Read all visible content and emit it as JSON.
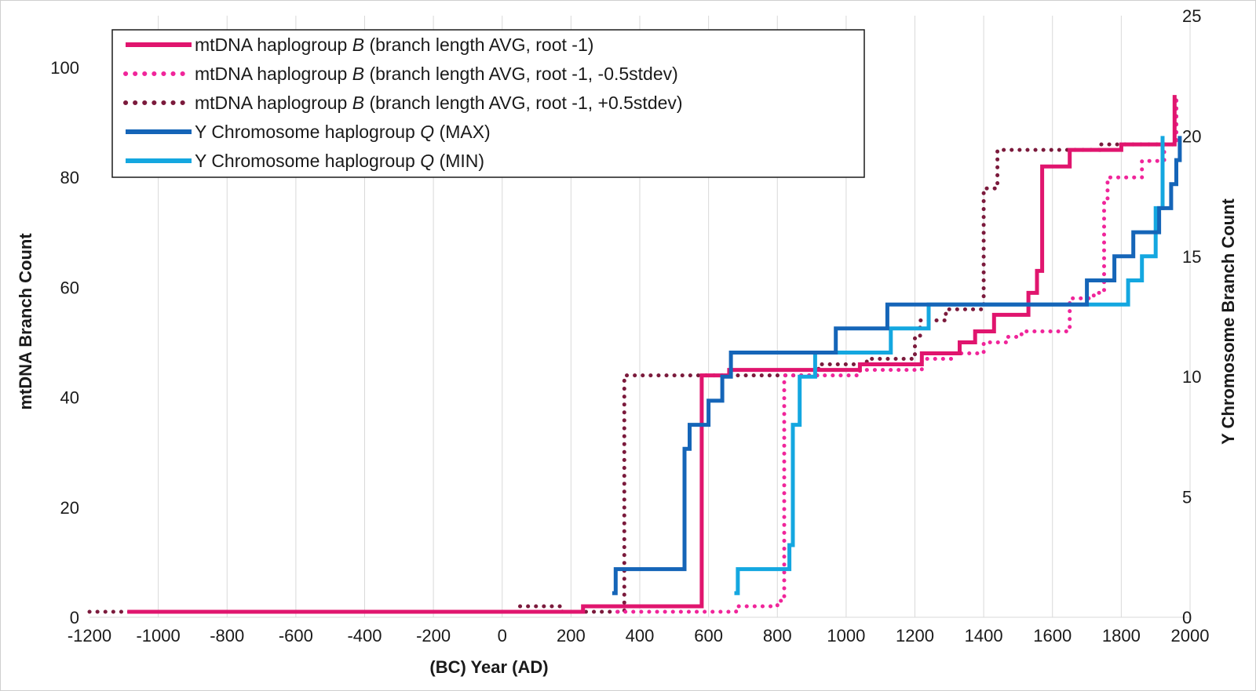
{
  "chart_data": {
    "type": "line",
    "xlabel": "(BC) Year (AD)",
    "ylabel_left": "mtDNA Branch Count",
    "ylabel_right": "Y Chromosome  Branch Count",
    "xlim": [
      -1200,
      2000
    ],
    "ylim_left": [
      0,
      110
    ],
    "ylim_right": [
      0,
      25
    ],
    "x_ticks": [
      -1200,
      -1000,
      -800,
      -600,
      -400,
      -200,
      0,
      200,
      400,
      600,
      800,
      1000,
      1200,
      1400,
      1600,
      1800,
      2000
    ],
    "y_left_ticks": [
      0,
      20,
      40,
      60,
      80,
      100
    ],
    "y_right_ticks": [
      0,
      5,
      10,
      15,
      20,
      25
    ],
    "grid": "vertical",
    "legend_position": "top-left",
    "series": [
      {
        "name": "mtDNA haplogroup B (branch length AVG, root -1)",
        "name_prefix": "mtDNA haplogroup ",
        "name_italic": "B",
        "name_suffix": " (branch length AVG, root -1)",
        "axis": "left",
        "color": "#e0156e",
        "style": "solid",
        "points": [
          [
            -1090,
            1
          ],
          [
            235,
            1
          ],
          [
            235,
            2
          ],
          [
            580,
            2
          ],
          [
            580,
            44
          ],
          [
            660,
            44
          ],
          [
            660,
            45
          ],
          [
            1040,
            45
          ],
          [
            1040,
            46
          ],
          [
            1220,
            46
          ],
          [
            1220,
            48
          ],
          [
            1330,
            48
          ],
          [
            1330,
            50
          ],
          [
            1375,
            50
          ],
          [
            1375,
            52
          ],
          [
            1430,
            52
          ],
          [
            1430,
            55
          ],
          [
            1530,
            55
          ],
          [
            1530,
            59
          ],
          [
            1555,
            59
          ],
          [
            1555,
            63
          ],
          [
            1570,
            63
          ],
          [
            1570,
            82
          ],
          [
            1650,
            82
          ],
          [
            1650,
            85
          ],
          [
            1800,
            85
          ],
          [
            1800,
            86
          ],
          [
            1955,
            86
          ],
          [
            1955,
            95
          ]
        ]
      },
      {
        "name": "mtDNA haplogroup B (branch length AVG, root -1, -0.5stdev)",
        "name_prefix": "mtDNA haplogroup ",
        "name_italic": "B",
        "name_suffix": " (branch length AVG, root -1, -0.5stdev)",
        "axis": "left",
        "color": "#f0259a",
        "style": "dotted",
        "points": [
          [
            335,
            1
          ],
          [
            435,
            1
          ],
          [
            680,
            1
          ],
          [
            680,
            2
          ],
          [
            800,
            2
          ],
          [
            800,
            3
          ],
          [
            820,
            3
          ],
          [
            820,
            44
          ],
          [
            1040,
            44
          ],
          [
            1040,
            45
          ],
          [
            1220,
            45
          ],
          [
            1220,
            47
          ],
          [
            1310,
            47
          ],
          [
            1310,
            48
          ],
          [
            1400,
            48
          ],
          [
            1400,
            50
          ],
          [
            1470,
            50
          ],
          [
            1470,
            51
          ],
          [
            1510,
            51
          ],
          [
            1510,
            52
          ],
          [
            1650,
            52
          ],
          [
            1650,
            58
          ],
          [
            1720,
            58
          ],
          [
            1720,
            59
          ],
          [
            1750,
            59
          ],
          [
            1750,
            76
          ],
          [
            1760,
            76
          ],
          [
            1760,
            80
          ],
          [
            1860,
            80
          ],
          [
            1860,
            83
          ],
          [
            1925,
            83
          ],
          [
            1925,
            86
          ],
          [
            1960,
            86
          ],
          [
            1960,
            95
          ]
        ]
      },
      {
        "name": "mtDNA haplogroup B (branch length AVG, root -1, +0.5stdev)",
        "name_prefix": "mtDNA haplogroup ",
        "name_italic": "B",
        "name_suffix": " (branch length AVG, root -1, +0.5stdev)",
        "axis": "left",
        "color": "#7b1a3c",
        "style": "dotted",
        "points": [
          [
            -1200,
            1
          ],
          [
            0,
            1
          ],
          [
            50,
            1
          ],
          [
            50,
            2
          ],
          [
            175,
            2
          ],
          [
            175,
            1
          ],
          [
            355,
            1
          ],
          [
            355,
            44
          ],
          [
            920,
            44
          ],
          [
            920,
            46
          ],
          [
            1060,
            46
          ],
          [
            1060,
            47
          ],
          [
            1200,
            47
          ],
          [
            1200,
            51
          ],
          [
            1215,
            51
          ],
          [
            1215,
            54
          ],
          [
            1290,
            54
          ],
          [
            1290,
            56
          ],
          [
            1400,
            56
          ],
          [
            1400,
            78
          ],
          [
            1440,
            78
          ],
          [
            1440,
            85
          ],
          [
            1500,
            85
          ],
          [
            1500,
            85
          ],
          [
            1735,
            85
          ],
          [
            1735,
            86
          ],
          [
            1960,
            86
          ],
          [
            1960,
            95
          ]
        ]
      },
      {
        "name": "Y Chromosome haplogroup Q (MAX)",
        "name_prefix": "Y Chromosome haplogroup ",
        "name_italic": "Q",
        "name_suffix": " (MAX)",
        "axis": "right",
        "color": "#1565b8",
        "style": "solid",
        "points": [
          [
            320,
            1
          ],
          [
            330,
            1
          ],
          [
            330,
            2
          ],
          [
            530,
            2
          ],
          [
            530,
            7
          ],
          [
            545,
            7
          ],
          [
            545,
            8
          ],
          [
            600,
            8
          ],
          [
            600,
            9
          ],
          [
            640,
            9
          ],
          [
            640,
            10
          ],
          [
            665,
            10
          ],
          [
            665,
            11
          ],
          [
            970,
            11
          ],
          [
            970,
            12
          ],
          [
            1120,
            12
          ],
          [
            1120,
            13
          ],
          [
            1700,
            13
          ],
          [
            1700,
            14
          ],
          [
            1780,
            14
          ],
          [
            1780,
            15
          ],
          [
            1835,
            15
          ],
          [
            1835,
            16
          ],
          [
            1910,
            16
          ],
          [
            1910,
            17
          ],
          [
            1945,
            17
          ],
          [
            1945,
            18
          ],
          [
            1960,
            18
          ],
          [
            1960,
            19
          ],
          [
            1970,
            19
          ],
          [
            1970,
            20
          ]
        ]
      },
      {
        "name": "Y Chromosome haplogroup Q (MIN)",
        "name_prefix": "Y Chromosome haplogroup ",
        "name_italic": "Q",
        "name_suffix": " (MIN)",
        "axis": "right",
        "color": "#14a7e0",
        "style": "solid",
        "points": [
          [
            675,
            1
          ],
          [
            685,
            1
          ],
          [
            685,
            2
          ],
          [
            835,
            2
          ],
          [
            835,
            3
          ],
          [
            845,
            3
          ],
          [
            845,
            8
          ],
          [
            865,
            8
          ],
          [
            865,
            10
          ],
          [
            910,
            10
          ],
          [
            910,
            11
          ],
          [
            1130,
            11
          ],
          [
            1130,
            12
          ],
          [
            1240,
            12
          ],
          [
            1240,
            13
          ],
          [
            1820,
            13
          ],
          [
            1820,
            14
          ],
          [
            1860,
            14
          ],
          [
            1860,
            15
          ],
          [
            1900,
            15
          ],
          [
            1900,
            17
          ],
          [
            1920,
            17
          ],
          [
            1920,
            20
          ]
        ]
      }
    ]
  }
}
